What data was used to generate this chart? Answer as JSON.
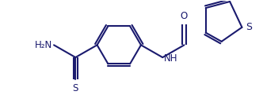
{
  "bg_color": "#ffffff",
  "line_color": "#1a1a6e",
  "line_width": 1.5,
  "font_size": 8.5,
  "font_color": "#1a1a6e",
  "figsize": [
    3.32,
    1.21
  ],
  "dpi": 100,
  "xlim": [
    0.0,
    10.0
  ],
  "ylim": [
    0.0,
    3.6
  ]
}
